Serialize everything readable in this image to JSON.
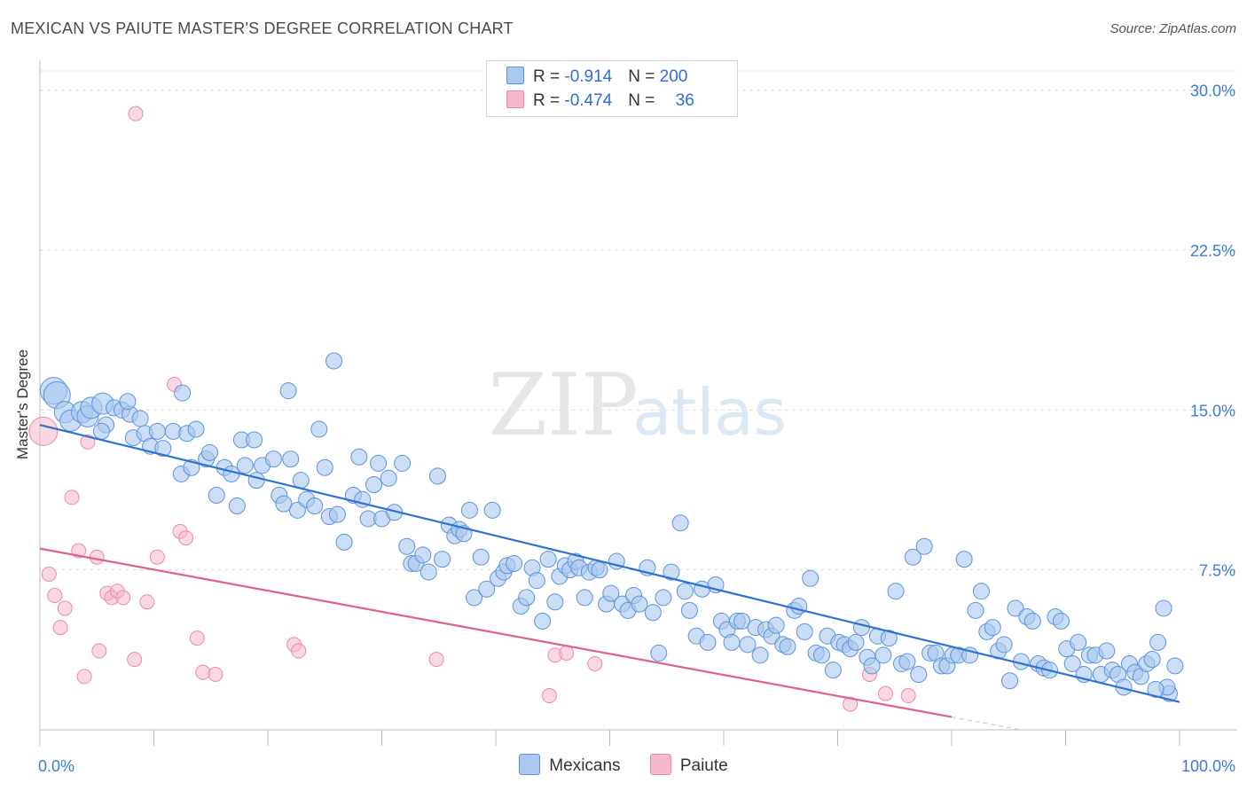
{
  "title": "MEXICAN VS PAIUTE MASTER'S DEGREE CORRELATION CHART",
  "source": "Source: ZipAtlas.com",
  "watermark": {
    "zip": "ZIP",
    "atlas": "atlas"
  },
  "legend": {
    "rows": [
      {
        "r_label": "R = ",
        "r_value": "-0.914",
        "n_label": "N = ",
        "n_value": "200",
        "color": "#a9c8ef"
      },
      {
        "r_label": "R = ",
        "r_value": "-0.474",
        "n_label": "N = ",
        "n_value": "36",
        "color": "#f5b8cb"
      }
    ]
  },
  "bottom_legend": {
    "mexicans": "Mexicans",
    "paiute": "Paiute"
  },
  "colors": {
    "blue_fill": "#a9c8ef",
    "blue_stroke": "#5b93dc",
    "blue_line": "#2e72d2",
    "pink_fill": "#f5b8cb",
    "pink_stroke": "#e98aa8",
    "pink_line": "#e0608f",
    "grid": "#dcdcdc",
    "axis_text": "#3d7bd3"
  },
  "chart_data": {
    "type": "scatter",
    "title": "MEXICAN VS PAIUTE MASTER'S DEGREE CORRELATION CHART",
    "ylabel": "Master's Degree",
    "xlabel": "",
    "xlim": [
      0,
      100
    ],
    "ylim": [
      0,
      30
    ],
    "x_tick_labels": [
      "0.0%",
      "100.0%"
    ],
    "y_ticks": [
      7.5,
      15.0,
      22.5,
      30.0
    ],
    "y_tick_labels": [
      "7.5%",
      "15.0%",
      "22.5%",
      "30.0%"
    ],
    "grid": "horizontal dashed",
    "series": [
      {
        "name": "Mexicans",
        "trend": {
          "x0": 0,
          "y0": 14.3,
          "x1": 100,
          "y1": 1.3
        },
        "points": [
          [
            1.2,
            15.9
          ],
          [
            1.5,
            15.7
          ],
          [
            2.2,
            14.9
          ],
          [
            2.7,
            14.5
          ],
          [
            3.7,
            14.9
          ],
          [
            4.2,
            14.7
          ],
          [
            4.5,
            15.1
          ],
          [
            5.5,
            15.3
          ],
          [
            5.8,
            14.3
          ],
          [
            5.4,
            14.0
          ],
          [
            6.5,
            15.1
          ],
          [
            7.2,
            15.0
          ],
          [
            7.9,
            14.8
          ],
          [
            7.7,
            15.4
          ],
          [
            8.8,
            14.6
          ],
          [
            8.2,
            13.7
          ],
          [
            9.2,
            13.9
          ],
          [
            9.7,
            13.3
          ],
          [
            10.3,
            14.0
          ],
          [
            10.8,
            13.2
          ],
          [
            11.7,
            14.0
          ],
          [
            12.4,
            12.0
          ],
          [
            12.5,
            15.8
          ],
          [
            12.9,
            13.9
          ],
          [
            13.3,
            12.3
          ],
          [
            13.7,
            14.1
          ],
          [
            14.6,
            12.7
          ],
          [
            14.9,
            13.0
          ],
          [
            15.5,
            11.0
          ],
          [
            16.2,
            12.3
          ],
          [
            16.8,
            12.0
          ],
          [
            17.3,
            10.5
          ],
          [
            17.7,
            13.6
          ],
          [
            18.0,
            12.4
          ],
          [
            18.8,
            13.6
          ],
          [
            19.0,
            11.7
          ],
          [
            19.5,
            12.4
          ],
          [
            20.5,
            12.7
          ],
          [
            21.0,
            11.0
          ],
          [
            21.4,
            10.6
          ],
          [
            21.8,
            15.9
          ],
          [
            22.0,
            12.7
          ],
          [
            22.6,
            10.3
          ],
          [
            22.9,
            11.7
          ],
          [
            23.4,
            10.8
          ],
          [
            24.1,
            10.5
          ],
          [
            24.5,
            14.1
          ],
          [
            25.0,
            12.3
          ],
          [
            25.4,
            10.0
          ],
          [
            25.8,
            17.3
          ],
          [
            26.1,
            10.1
          ],
          [
            26.7,
            8.8
          ],
          [
            27.5,
            11.0
          ],
          [
            28.0,
            12.8
          ],
          [
            28.3,
            10.8
          ],
          [
            28.8,
            9.9
          ],
          [
            29.3,
            11.5
          ],
          [
            29.7,
            12.5
          ],
          [
            30.0,
            9.9
          ],
          [
            30.6,
            11.8
          ],
          [
            31.1,
            10.2
          ],
          [
            31.8,
            12.5
          ],
          [
            32.2,
            8.6
          ],
          [
            32.6,
            7.8
          ],
          [
            33.0,
            7.8
          ],
          [
            33.6,
            8.2
          ],
          [
            34.1,
            7.4
          ],
          [
            34.9,
            11.9
          ],
          [
            35.3,
            8.0
          ],
          [
            35.9,
            9.6
          ],
          [
            36.4,
            9.1
          ],
          [
            36.8,
            9.4
          ],
          [
            37.2,
            9.2
          ],
          [
            37.7,
            10.3
          ],
          [
            38.1,
            6.2
          ],
          [
            38.7,
            8.1
          ],
          [
            39.2,
            6.6
          ],
          [
            39.7,
            10.3
          ],
          [
            40.2,
            7.1
          ],
          [
            40.7,
            7.4
          ],
          [
            41.0,
            7.7
          ],
          [
            41.6,
            7.8
          ],
          [
            42.2,
            5.8
          ],
          [
            42.7,
            6.2
          ],
          [
            43.2,
            7.6
          ],
          [
            43.6,
            7.0
          ],
          [
            44.1,
            5.1
          ],
          [
            44.6,
            8.0
          ],
          [
            45.2,
            6.0
          ],
          [
            45.6,
            7.2
          ],
          [
            46.1,
            7.7
          ],
          [
            46.5,
            7.5
          ],
          [
            47.0,
            7.9
          ],
          [
            47.3,
            7.6
          ],
          [
            47.8,
            6.2
          ],
          [
            48.2,
            7.4
          ],
          [
            48.8,
            7.6
          ],
          [
            49.1,
            7.5
          ],
          [
            49.7,
            5.9
          ],
          [
            50.1,
            6.4
          ],
          [
            50.6,
            7.9
          ],
          [
            51.1,
            5.9
          ],
          [
            51.6,
            5.6
          ],
          [
            52.1,
            6.3
          ],
          [
            52.6,
            5.9
          ],
          [
            53.3,
            7.6
          ],
          [
            53.8,
            5.5
          ],
          [
            54.3,
            3.6
          ],
          [
            54.7,
            6.2
          ],
          [
            55.4,
            7.4
          ],
          [
            56.2,
            9.7
          ],
          [
            56.6,
            6.5
          ],
          [
            57.0,
            5.6
          ],
          [
            57.6,
            4.4
          ],
          [
            58.1,
            6.6
          ],
          [
            58.6,
            4.1
          ],
          [
            59.3,
            6.8
          ],
          [
            59.8,
            5.1
          ],
          [
            60.3,
            4.7
          ],
          [
            60.7,
            4.1
          ],
          [
            61.2,
            5.1
          ],
          [
            61.6,
            5.1
          ],
          [
            62.1,
            4.0
          ],
          [
            62.8,
            4.8
          ],
          [
            63.2,
            3.5
          ],
          [
            63.7,
            4.7
          ],
          [
            64.2,
            4.4
          ],
          [
            64.6,
            4.9
          ],
          [
            65.2,
            4.0
          ],
          [
            65.6,
            3.9
          ],
          [
            66.2,
            5.6
          ],
          [
            66.6,
            5.8
          ],
          [
            67.1,
            4.6
          ],
          [
            67.6,
            7.1
          ],
          [
            68.1,
            3.6
          ],
          [
            68.6,
            3.5
          ],
          [
            69.1,
            4.4
          ],
          [
            69.6,
            2.8
          ],
          [
            70.1,
            4.1
          ],
          [
            70.6,
            4.0
          ],
          [
            71.1,
            3.8
          ],
          [
            71.6,
            4.1
          ],
          [
            72.1,
            4.8
          ],
          [
            72.6,
            3.4
          ],
          [
            73.0,
            3.0
          ],
          [
            73.5,
            4.4
          ],
          [
            74.0,
            3.5
          ],
          [
            74.5,
            4.3
          ],
          [
            75.1,
            6.5
          ],
          [
            75.6,
            3.1
          ],
          [
            76.1,
            3.2
          ],
          [
            76.6,
            8.1
          ],
          [
            77.1,
            2.6
          ],
          [
            77.6,
            8.6
          ],
          [
            78.1,
            3.6
          ],
          [
            78.6,
            3.6
          ],
          [
            79.1,
            3.0
          ],
          [
            79.6,
            3.0
          ],
          [
            80.1,
            3.5
          ],
          [
            80.6,
            3.5
          ],
          [
            81.1,
            8.0
          ],
          [
            81.6,
            3.5
          ],
          [
            82.1,
            5.6
          ],
          [
            82.6,
            6.5
          ],
          [
            83.1,
            4.6
          ],
          [
            83.6,
            4.8
          ],
          [
            84.1,
            3.7
          ],
          [
            84.6,
            4.0
          ],
          [
            85.1,
            2.3
          ],
          [
            85.6,
            5.7
          ],
          [
            86.1,
            3.2
          ],
          [
            86.6,
            5.3
          ],
          [
            87.1,
            5.1
          ],
          [
            87.6,
            3.1
          ],
          [
            88.1,
            2.9
          ],
          [
            88.6,
            2.8
          ],
          [
            89.1,
            5.3
          ],
          [
            89.6,
            5.1
          ],
          [
            90.1,
            3.8
          ],
          [
            90.6,
            3.1
          ],
          [
            91.1,
            4.1
          ],
          [
            91.6,
            2.6
          ],
          [
            92.1,
            3.5
          ],
          [
            92.6,
            3.5
          ],
          [
            93.1,
            2.6
          ],
          [
            93.6,
            3.7
          ],
          [
            94.1,
            2.8
          ],
          [
            94.6,
            2.6
          ],
          [
            95.1,
            2.0
          ],
          [
            95.6,
            3.1
          ],
          [
            96.1,
            2.7
          ],
          [
            96.6,
            2.5
          ],
          [
            97.1,
            3.1
          ],
          [
            97.6,
            3.3
          ],
          [
            98.1,
            4.1
          ],
          [
            98.6,
            5.7
          ],
          [
            99.1,
            1.7
          ],
          [
            99.6,
            3.0
          ],
          [
            98.9,
            2.0
          ],
          [
            97.9,
            1.9
          ]
        ]
      },
      {
        "name": "Paiute",
        "trend": {
          "x0": 0,
          "y0": 8.5,
          "x1": 80,
          "y1": 0.6
        },
        "points": [
          [
            0.3,
            14.0
          ],
          [
            0.8,
            7.3
          ],
          [
            1.3,
            6.3
          ],
          [
            1.8,
            4.8
          ],
          [
            2.2,
            5.7
          ],
          [
            2.8,
            10.9
          ],
          [
            3.4,
            8.4
          ],
          [
            3.9,
            2.5
          ],
          [
            4.2,
            13.5
          ],
          [
            5.0,
            8.1
          ],
          [
            5.2,
            3.7
          ],
          [
            5.9,
            6.4
          ],
          [
            6.3,
            6.2
          ],
          [
            6.8,
            6.5
          ],
          [
            7.3,
            6.2
          ],
          [
            8.3,
            3.3
          ],
          [
            8.4,
            28.9
          ],
          [
            9.4,
            6.0
          ],
          [
            10.3,
            8.1
          ],
          [
            11.8,
            16.2
          ],
          [
            12.3,
            9.3
          ],
          [
            12.8,
            9.0
          ],
          [
            13.8,
            4.3
          ],
          [
            14.3,
            2.7
          ],
          [
            15.4,
            2.6
          ],
          [
            22.3,
            4.0
          ],
          [
            22.7,
            3.7
          ],
          [
            34.8,
            3.3
          ],
          [
            44.7,
            1.6
          ],
          [
            45.2,
            3.5
          ],
          [
            46.2,
            3.6
          ],
          [
            48.7,
            3.1
          ],
          [
            71.1,
            1.2
          ],
          [
            72.8,
            2.6
          ],
          [
            74.2,
            1.7
          ],
          [
            76.2,
            1.6
          ]
        ]
      }
    ]
  }
}
